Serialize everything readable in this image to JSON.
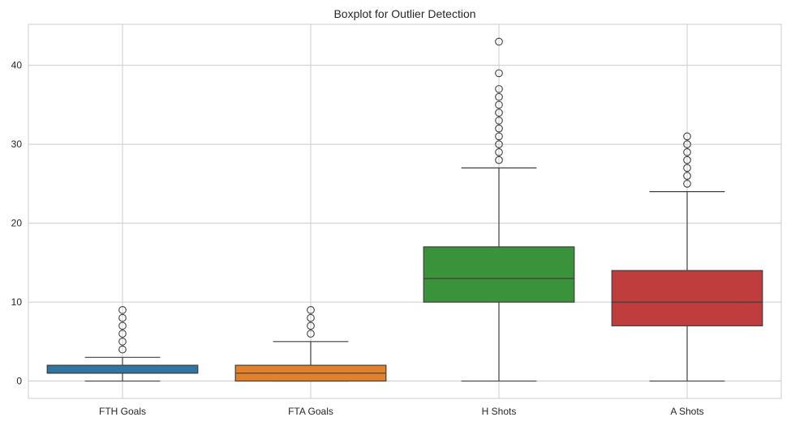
{
  "chart_data": {
    "type": "box",
    "title": "Boxplot for Outlier Detection",
    "xlabel": "",
    "ylabel": "",
    "ylim": [
      -2.2,
      45.2
    ],
    "yticks": [
      0,
      10,
      20,
      30,
      40
    ],
    "grid": true,
    "legend": "none",
    "categories": [
      "FTH Goals",
      "FTA Goals",
      "H Shots",
      "A Shots"
    ],
    "colors": [
      "#3274a1",
      "#e1812c",
      "#3a923a",
      "#c03d3e"
    ],
    "boxes": [
      {
        "category": "FTH Goals",
        "whisker_low": 0,
        "q1": 1,
        "median": 1,
        "q3": 2,
        "whisker_high": 3,
        "outliers": [
          4,
          5,
          6,
          7,
          8,
          9
        ]
      },
      {
        "category": "FTA Goals",
        "whisker_low": 0,
        "q1": 0,
        "median": 1,
        "q3": 2,
        "whisker_high": 5,
        "outliers": [
          6,
          7,
          8,
          9
        ]
      },
      {
        "category": "H Shots",
        "whisker_low": 0,
        "q1": 10,
        "median": 13,
        "q3": 17,
        "whisker_high": 27,
        "outliers": [
          28,
          29,
          30,
          31,
          32,
          33,
          34,
          35,
          36,
          37,
          39,
          43
        ]
      },
      {
        "category": "A Shots",
        "whisker_low": 0,
        "q1": 7,
        "median": 10,
        "q3": 14,
        "whisker_high": 24,
        "outliers": [
          25,
          26,
          27,
          28,
          29,
          30,
          31
        ]
      }
    ]
  }
}
